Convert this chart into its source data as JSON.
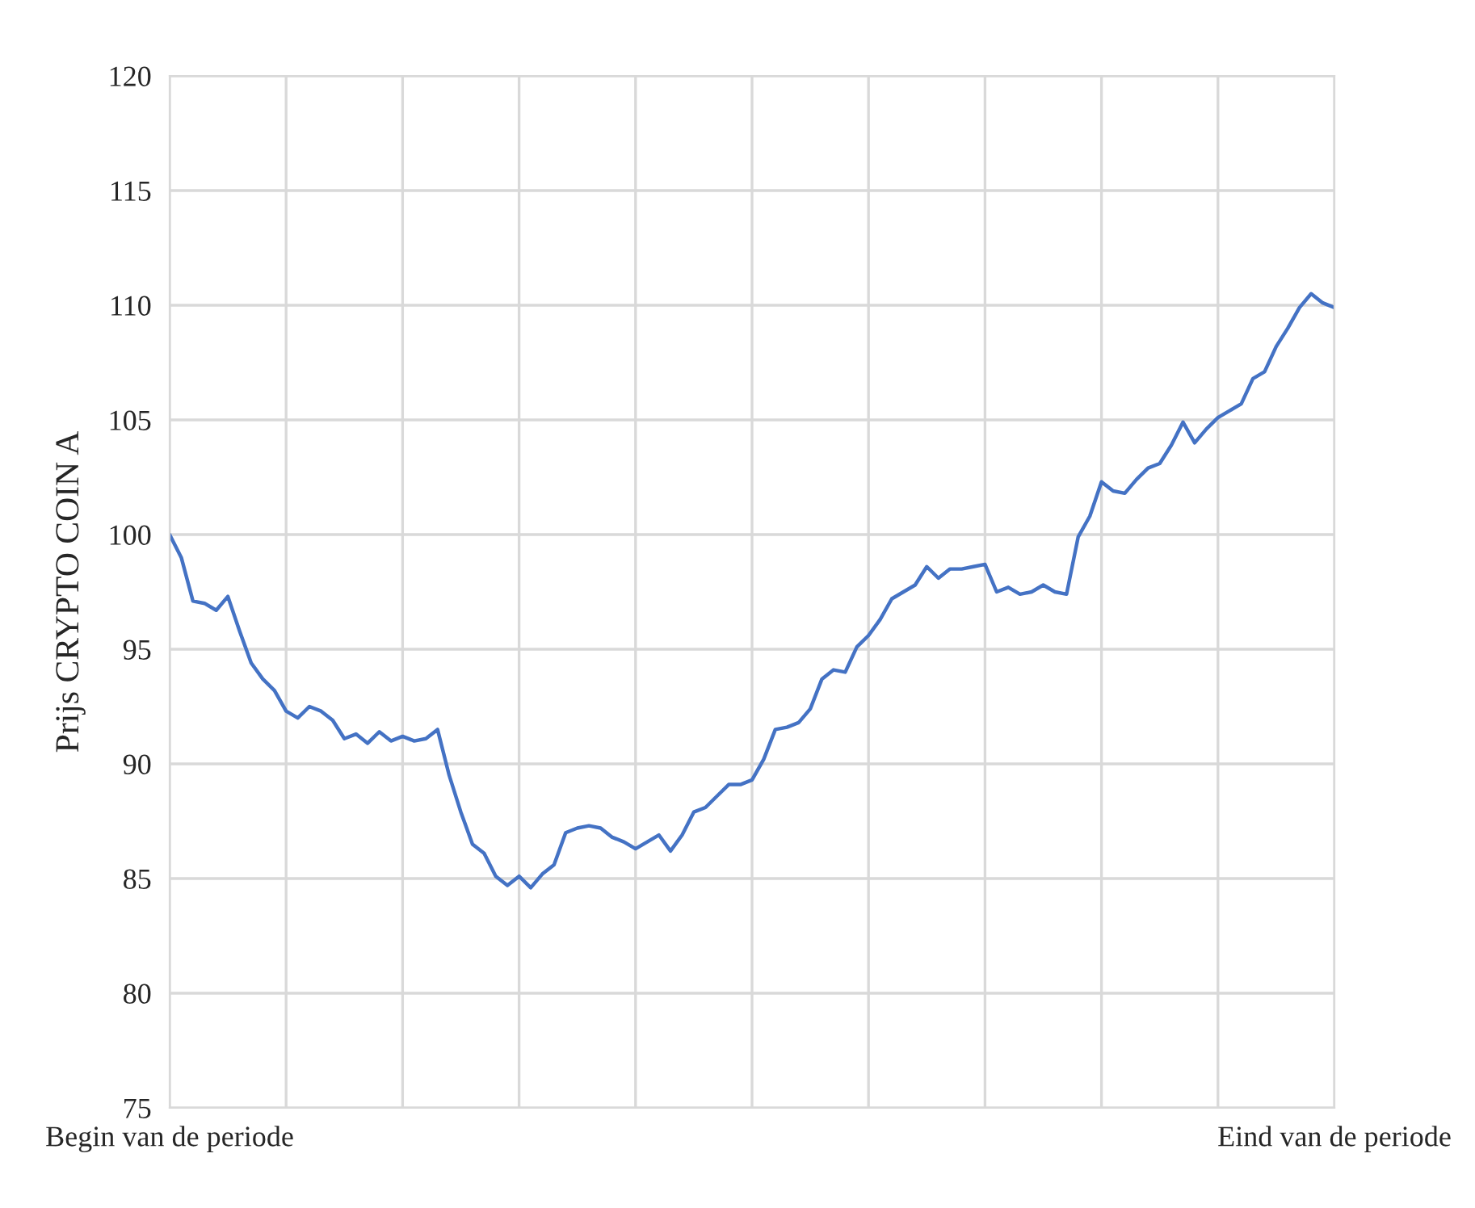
{
  "chart_data": {
    "type": "line",
    "ylabel": "Prijs CRYPTO COIN A",
    "ylim": [
      75,
      120
    ],
    "yticks": [
      75,
      80,
      85,
      90,
      95,
      100,
      105,
      110,
      115,
      120
    ],
    "categories": [
      "Begin van de periode",
      null,
      null,
      null,
      null,
      null,
      null,
      null,
      null,
      null,
      null,
      null,
      null,
      null,
      null,
      null,
      null,
      null,
      null,
      null,
      null,
      null,
      null,
      null,
      null,
      null,
      null,
      null,
      null,
      null,
      null,
      null,
      null,
      null,
      null,
      null,
      null,
      null,
      null,
      null,
      null,
      null,
      null,
      null,
      null,
      null,
      null,
      null,
      null,
      null,
      null,
      null,
      null,
      null,
      null,
      null,
      null,
      null,
      null,
      null,
      null,
      null,
      null,
      null,
      null,
      null,
      null,
      null,
      null,
      null,
      null,
      null,
      null,
      null,
      null,
      null,
      null,
      null,
      null,
      null,
      null,
      null,
      null,
      null,
      null,
      null,
      null,
      null,
      null,
      null,
      null,
      null,
      null,
      null,
      null,
      null,
      null,
      null,
      null,
      null,
      "Eind van de periode"
    ],
    "grid": true,
    "marker": "none",
    "line_style": "solid",
    "series": [
      {
        "color": "#4472c4",
        "values": [
          100.0,
          99.0,
          97.1,
          97.0,
          96.7,
          97.3,
          95.8,
          94.4,
          93.7,
          93.2,
          92.3,
          92.0,
          92.5,
          92.3,
          91.9,
          91.1,
          91.3,
          90.9,
          91.4,
          91.0,
          91.2,
          91.0,
          91.1,
          91.5,
          89.5,
          87.9,
          86.5,
          86.1,
          85.1,
          84.7,
          85.1,
          84.6,
          85.2,
          85.6,
          87.0,
          87.2,
          87.3,
          87.2,
          86.8,
          86.6,
          86.3,
          86.6,
          86.9,
          86.2,
          86.9,
          87.9,
          88.1,
          88.6,
          89.1,
          89.1,
          89.3,
          90.2,
          91.5,
          91.6,
          91.8,
          92.4,
          93.7,
          94.1,
          94.0,
          95.1,
          95.6,
          96.3,
          97.2,
          97.5,
          97.8,
          98.6,
          98.1,
          98.5,
          98.5,
          98.6,
          98.7,
          97.5,
          97.7,
          97.4,
          97.5,
          97.8,
          97.5,
          97.4,
          99.9,
          100.8,
          102.3,
          101.9,
          101.8,
          102.4,
          102.9,
          103.1,
          103.9,
          104.9,
          104.0,
          104.6,
          105.1,
          105.4,
          105.7,
          106.8,
          107.1,
          108.2,
          109.0,
          109.9,
          110.5,
          110.1,
          109.9
        ]
      }
    ]
  }
}
